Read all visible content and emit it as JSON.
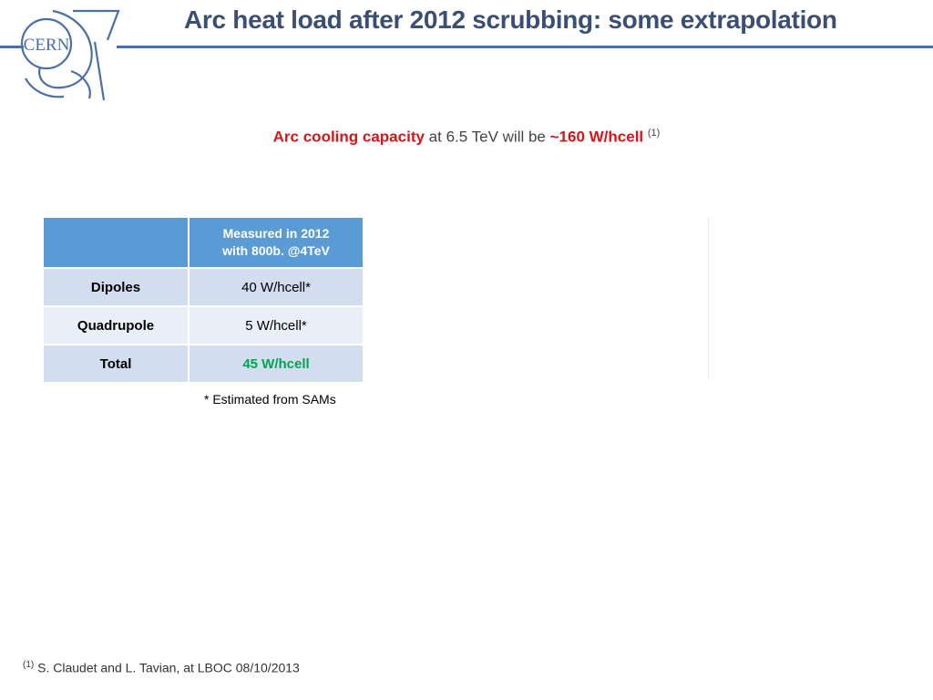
{
  "header": {
    "title": "Arc heat load after 2012 scrubbing: some extrapolation",
    "logo_text": "CERN",
    "accent_color": "#4a6fa5"
  },
  "capacity": {
    "label": "Arc cooling capacity",
    "middle": "at 6.5 TeV will be",
    "value": "~160 W/hcell",
    "ref_mark": "(1)"
  },
  "table": {
    "header_line1": "Measured in 2012",
    "header_line2": "with 800b.  @4TeV",
    "rows": [
      {
        "label": "Dipoles",
        "value": "40 W/hcell*"
      },
      {
        "label": "Quadrupole",
        "value": "5 W/hcell*"
      },
      {
        "label": "Total",
        "value": "45 W/hcell"
      }
    ]
  },
  "note": "* Estimated from SAMs",
  "footer": {
    "ref_mark": "(1)",
    "text": "S. Claudet and L. Tavian, at LBOC 08/10/2013"
  }
}
